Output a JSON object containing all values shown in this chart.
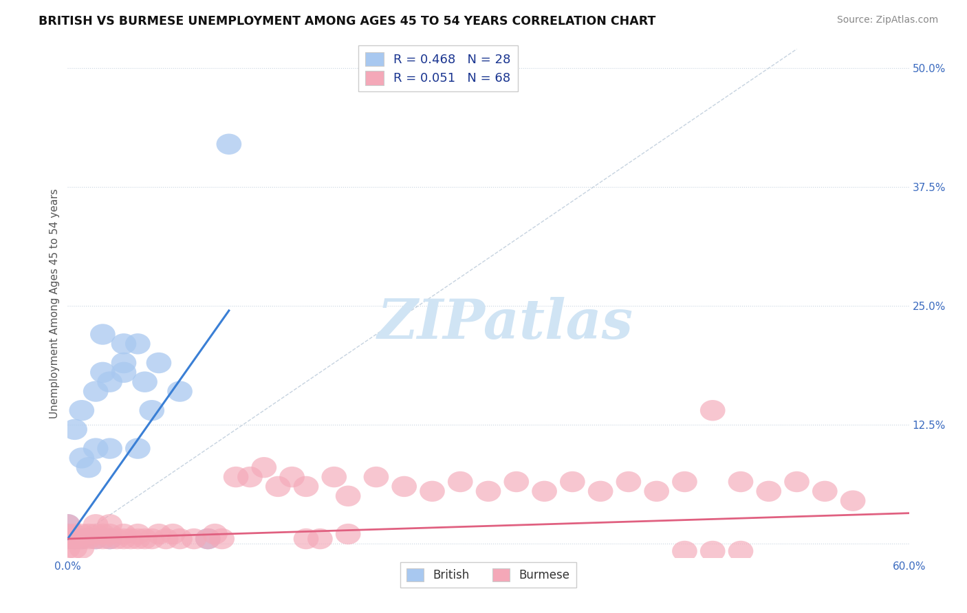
{
  "title": "BRITISH VS BURMESE UNEMPLOYMENT AMONG AGES 45 TO 54 YEARS CORRELATION CHART",
  "source": "Source: ZipAtlas.com",
  "ylabel": "Unemployment Among Ages 45 to 54 years",
  "xlim": [
    0.0,
    0.6
  ],
  "ylim": [
    -0.015,
    0.52
  ],
  "xticks": [
    0.0,
    0.1,
    0.2,
    0.3,
    0.4,
    0.5,
    0.6
  ],
  "xticklabels": [
    "0.0%",
    "",
    "",
    "",
    "",
    "",
    "60.0%"
  ],
  "yticks": [
    0.0,
    0.125,
    0.25,
    0.375,
    0.5
  ],
  "yticklabels": [
    "",
    "12.5%",
    "25.0%",
    "37.5%",
    "50.0%"
  ],
  "british_R": 0.468,
  "british_N": 28,
  "burmese_R": 0.051,
  "burmese_N": 68,
  "british_color": "#a8c8f0",
  "burmese_color": "#f4a8b8",
  "british_line_color": "#3a7fd5",
  "burmese_line_color": "#e06080",
  "diagonal_color": "#b8c8d8",
  "british_points_x": [
    0.0,
    0.0,
    0.0,
    0.005,
    0.005,
    0.01,
    0.01,
    0.01,
    0.015,
    0.02,
    0.02,
    0.02,
    0.025,
    0.025,
    0.03,
    0.03,
    0.03,
    0.04,
    0.04,
    0.04,
    0.05,
    0.05,
    0.055,
    0.06,
    0.065,
    0.08,
    0.1,
    0.115
  ],
  "british_points_y": [
    0.005,
    0.01,
    0.02,
    0.005,
    0.12,
    0.005,
    0.09,
    0.14,
    0.08,
    0.005,
    0.1,
    0.16,
    0.18,
    0.22,
    0.005,
    0.1,
    0.17,
    0.19,
    0.21,
    0.18,
    0.21,
    0.1,
    0.17,
    0.14,
    0.19,
    0.16,
    0.005,
    0.42
  ],
  "burmese_points_x": [
    0.0,
    0.0,
    0.0,
    0.0,
    0.005,
    0.005,
    0.005,
    0.01,
    0.01,
    0.01,
    0.015,
    0.015,
    0.02,
    0.02,
    0.02,
    0.025,
    0.025,
    0.03,
    0.03,
    0.03,
    0.035,
    0.04,
    0.04,
    0.045,
    0.05,
    0.05,
    0.055,
    0.06,
    0.065,
    0.07,
    0.075,
    0.08,
    0.09,
    0.1,
    0.105,
    0.11,
    0.12,
    0.13,
    0.14,
    0.15,
    0.16,
    0.17,
    0.19,
    0.2,
    0.22,
    0.24,
    0.26,
    0.28,
    0.3,
    0.32,
    0.34,
    0.36,
    0.38,
    0.4,
    0.42,
    0.44,
    0.46,
    0.48,
    0.5,
    0.52,
    0.54,
    0.56,
    0.44,
    0.46,
    0.48,
    0.17,
    0.18,
    0.2
  ],
  "burmese_points_y": [
    0.005,
    0.01,
    0.02,
    -0.005,
    0.005,
    0.01,
    -0.005,
    0.005,
    0.01,
    -0.005,
    0.005,
    0.01,
    0.005,
    0.01,
    0.02,
    0.005,
    0.01,
    0.005,
    0.01,
    0.02,
    0.005,
    0.005,
    0.01,
    0.005,
    0.005,
    0.01,
    0.005,
    0.005,
    0.01,
    0.005,
    0.01,
    0.005,
    0.005,
    0.005,
    0.01,
    0.005,
    0.07,
    0.07,
    0.08,
    0.06,
    0.07,
    0.06,
    0.07,
    0.05,
    0.07,
    0.06,
    0.055,
    0.065,
    0.055,
    0.065,
    0.055,
    0.065,
    0.055,
    0.065,
    0.055,
    0.065,
    0.14,
    0.065,
    0.055,
    0.065,
    0.055,
    0.045,
    -0.008,
    -0.008,
    -0.008,
    0.005,
    0.005,
    0.01
  ],
  "brit_line_x0": 0.0,
  "brit_line_x1": 0.115,
  "brit_line_y0": 0.005,
  "brit_line_y1": 0.245,
  "burm_line_x0": 0.0,
  "burm_line_x1": 0.6,
  "burm_line_y0": 0.005,
  "burm_line_y1": 0.032,
  "watermark_text": "ZIPatlas",
  "background_color": "#ffffff",
  "grid_color": "#c8d4e0"
}
